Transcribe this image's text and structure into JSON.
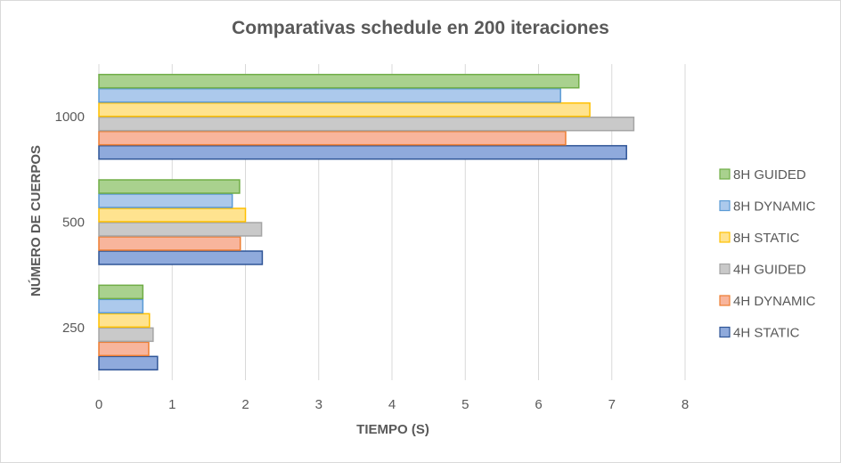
{
  "chart_data": {
    "type": "bar",
    "orientation": "horizontal",
    "title": "Comparativas  schedule  en 200 iteraciones",
    "xlabel": "TIEMPO (S)",
    "ylabel": "NÚMERO DE CUERPOS",
    "categories": [
      "250",
      "500",
      "1000"
    ],
    "xlim": [
      0,
      8
    ],
    "xticks": [
      "0",
      "1",
      "2",
      "3",
      "4",
      "5",
      "6",
      "7",
      "8"
    ],
    "grid": true,
    "legend_position": "right",
    "series": [
      {
        "name": "4H STATIC",
        "color": "#8faadc",
        "border": "#2f5597",
        "values": [
          0.8,
          2.23,
          7.2
        ]
      },
      {
        "name": "4H DYNAMIC",
        "color": "#f8b59c",
        "border": "#ed7d31",
        "values": [
          0.68,
          1.93,
          6.37
        ]
      },
      {
        "name": "4H GUIDED",
        "color": "#c9c9c9",
        "border": "#a5a5a5",
        "values": [
          0.74,
          2.22,
          7.3
        ]
      },
      {
        "name": "8H STATIC",
        "color": "#ffe38f",
        "border": "#ffc000",
        "values": [
          0.69,
          2.0,
          6.7
        ]
      },
      {
        "name": "8H DYNAMIC",
        "color": "#acc9ec",
        "border": "#5b9bd5",
        "values": [
          0.6,
          1.82,
          6.3
        ]
      },
      {
        "name": "8H GUIDED",
        "color": "#a9d18e",
        "border": "#70ad47",
        "values": [
          0.6,
          1.92,
          6.55
        ]
      }
    ]
  }
}
